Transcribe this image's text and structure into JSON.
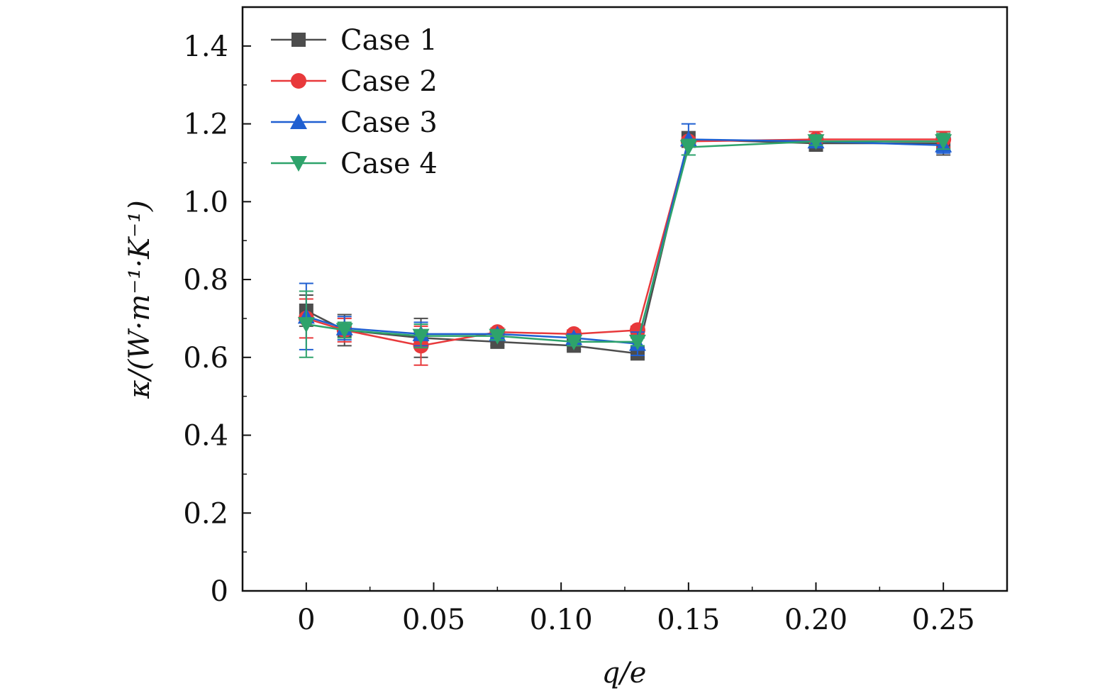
{
  "chart_data": {
    "type": "line",
    "title": "",
    "xlabel": "q/e",
    "ylabel": "κ/(W·m⁻¹·K⁻¹)",
    "xlim": [
      -0.025,
      0.275
    ],
    "ylim": [
      0,
      1.5
    ],
    "x": [
      0,
      0.015,
      0.045,
      0.075,
      0.105,
      0.13,
      0.15,
      0.2,
      0.25
    ],
    "x_ticks": [
      0,
      0.05,
      0.1,
      0.15,
      0.2,
      0.25
    ],
    "x_tick_labels": [
      "0",
      "0.05",
      "0.10",
      "0.15",
      "0.20",
      "0.25"
    ],
    "y_ticks": [
      0,
      0.2,
      0.4,
      0.6,
      0.8,
      1.0,
      1.2,
      1.4
    ],
    "y_tick_labels": [
      "0",
      "0.2",
      "0.4",
      "0.6",
      "0.8",
      "1.0",
      "1.2",
      "1.4"
    ],
    "legend_position": "top-left",
    "grid": false,
    "series": [
      {
        "name": "Case 1",
        "color": "#4d4d4d",
        "marker": "square",
        "values": [
          0.72,
          0.67,
          0.65,
          0.64,
          0.63,
          0.61,
          1.16,
          1.15,
          1.15
        ],
        "errors": [
          0.04,
          0.04,
          0.05,
          0.01,
          0.01,
          0.01,
          0.02,
          0.02,
          0.03
        ]
      },
      {
        "name": "Case 2",
        "color": "#e8393b",
        "marker": "circle",
        "values": [
          0.7,
          0.67,
          0.63,
          0.665,
          0.66,
          0.67,
          1.155,
          1.16,
          1.16
        ],
        "errors": [
          0.05,
          0.03,
          0.05,
          0.01,
          0.01,
          0.01,
          0.01,
          0.02,
          0.02
        ]
      },
      {
        "name": "Case 3",
        "color": "#1f5fd1",
        "marker": "triangle-up",
        "values": [
          0.705,
          0.675,
          0.66,
          0.66,
          0.65,
          0.635,
          1.16,
          1.155,
          1.145
        ],
        "errors": [
          0.085,
          0.03,
          0.03,
          0.01,
          0.01,
          0.03,
          0.04,
          0.01,
          0.02
        ]
      },
      {
        "name": "Case 4",
        "color": "#2ea36b",
        "marker": "triangle-down",
        "values": [
          0.685,
          0.67,
          0.655,
          0.655,
          0.64,
          0.64,
          1.14,
          1.155,
          1.155
        ],
        "errors": [
          0.085,
          0.02,
          0.03,
          0.01,
          0.01,
          0.01,
          0.02,
          0.01,
          0.02
        ]
      }
    ]
  }
}
